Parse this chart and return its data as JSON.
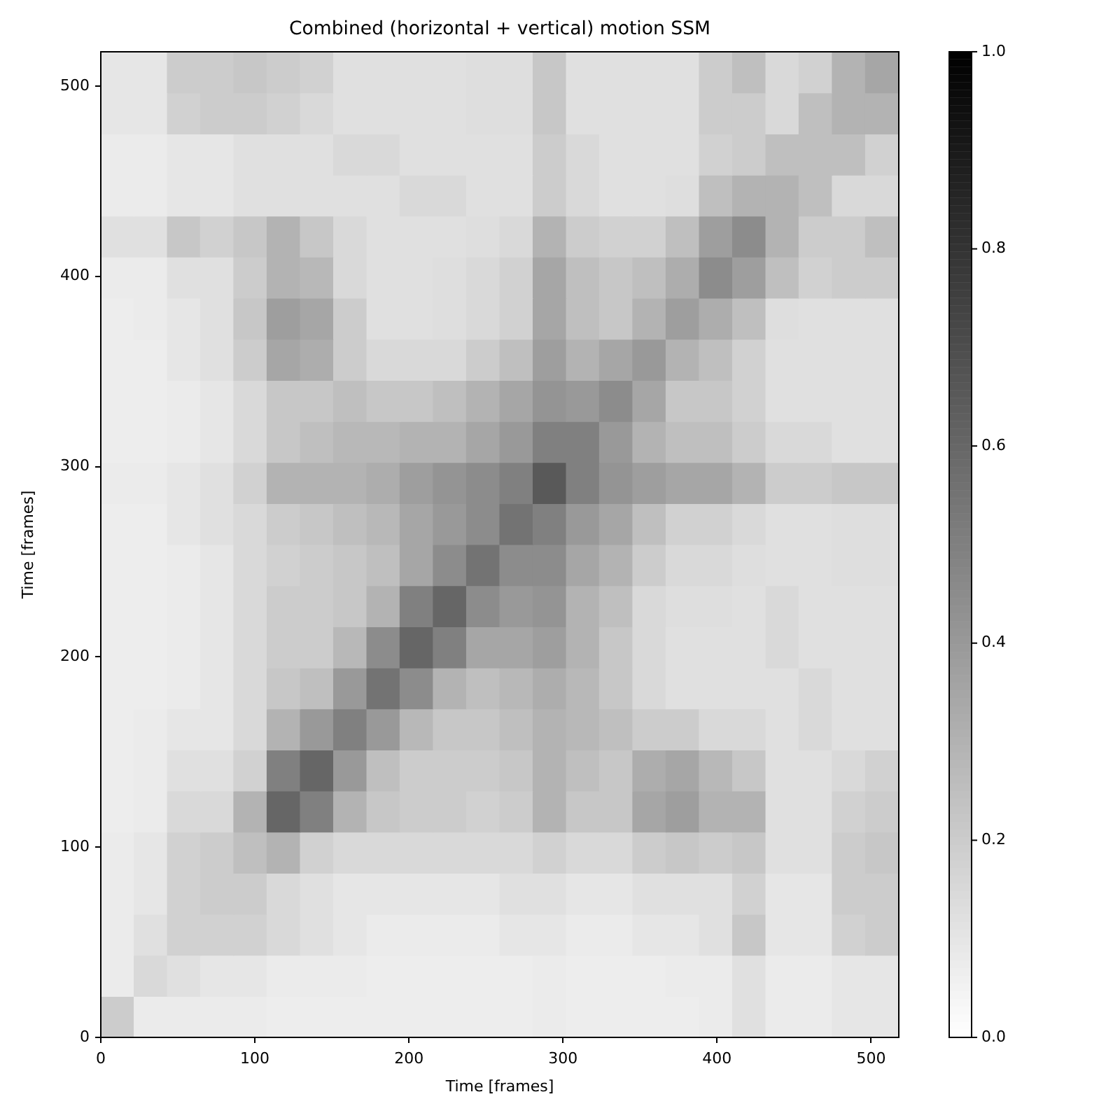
{
  "chart_data": {
    "type": "heatmap",
    "title": "Combined (horizontal + vertical) motion SSM",
    "xlabel": "Time [frames]",
    "ylabel": "Time [frames]",
    "x": [
      10.8,
      32.4,
      54.0,
      75.5,
      97.1,
      118.7,
      140.3,
      161.9,
      183.5,
      205.0,
      226.6,
      248.2,
      269.8,
      291.4,
      313.0,
      334.5,
      356.1,
      377.7,
      399.3,
      420.9,
      442.5,
      464.0,
      485.6,
      507.2
    ],
    "y": [
      507.2,
      485.6,
      464.0,
      442.5,
      420.9,
      399.3,
      377.7,
      356.1,
      334.5,
      313.0,
      291.4,
      269.8,
      248.2,
      226.6,
      205.0,
      183.5,
      161.9,
      140.3,
      118.7,
      97.1,
      75.5,
      54.0,
      32.4,
      10.8
    ],
    "xlim": [
      0,
      518
    ],
    "ylim": [
      0,
      518
    ],
    "xticks": [
      0,
      100,
      200,
      300,
      400,
      500
    ],
    "yticks": [
      0,
      100,
      200,
      300,
      400,
      500
    ],
    "cells": [
      [
        0.1,
        0.1,
        0.2,
        0.2,
        0.22,
        0.2,
        0.18,
        0.12,
        0.12,
        0.12,
        0.12,
        0.13,
        0.13,
        0.22,
        0.12,
        0.12,
        0.12,
        0.12,
        0.2,
        0.25,
        0.15,
        0.18,
        0.3,
        0.35
      ],
      [
        0.1,
        0.1,
        0.18,
        0.2,
        0.2,
        0.18,
        0.15,
        0.12,
        0.12,
        0.12,
        0.12,
        0.13,
        0.13,
        0.22,
        0.12,
        0.12,
        0.12,
        0.12,
        0.2,
        0.2,
        0.15,
        0.25,
        0.3,
        0.3
      ],
      [
        0.08,
        0.08,
        0.1,
        0.1,
        0.12,
        0.12,
        0.12,
        0.15,
        0.15,
        0.12,
        0.12,
        0.12,
        0.12,
        0.2,
        0.15,
        0.12,
        0.12,
        0.12,
        0.18,
        0.2,
        0.25,
        0.25,
        0.25,
        0.18
      ],
      [
        0.08,
        0.08,
        0.1,
        0.1,
        0.12,
        0.12,
        0.12,
        0.12,
        0.12,
        0.15,
        0.15,
        0.12,
        0.12,
        0.2,
        0.15,
        0.12,
        0.12,
        0.13,
        0.25,
        0.3,
        0.3,
        0.25,
        0.15,
        0.15
      ],
      [
        0.12,
        0.12,
        0.22,
        0.18,
        0.22,
        0.3,
        0.22,
        0.15,
        0.12,
        0.12,
        0.12,
        0.13,
        0.15,
        0.3,
        0.2,
        0.18,
        0.18,
        0.25,
        0.38,
        0.45,
        0.3,
        0.2,
        0.2,
        0.25
      ],
      [
        0.08,
        0.08,
        0.12,
        0.12,
        0.2,
        0.3,
        0.28,
        0.15,
        0.12,
        0.12,
        0.13,
        0.15,
        0.18,
        0.35,
        0.25,
        0.22,
        0.25,
        0.32,
        0.45,
        0.38,
        0.25,
        0.18,
        0.2,
        0.2
      ],
      [
        0.07,
        0.08,
        0.1,
        0.12,
        0.22,
        0.38,
        0.35,
        0.2,
        0.12,
        0.12,
        0.13,
        0.15,
        0.18,
        0.35,
        0.25,
        0.22,
        0.3,
        0.38,
        0.32,
        0.25,
        0.13,
        0.12,
        0.12,
        0.12
      ],
      [
        0.07,
        0.07,
        0.1,
        0.12,
        0.2,
        0.35,
        0.32,
        0.2,
        0.15,
        0.15,
        0.15,
        0.2,
        0.25,
        0.38,
        0.3,
        0.35,
        0.4,
        0.3,
        0.25,
        0.18,
        0.12,
        0.12,
        0.12,
        0.12
      ],
      [
        0.07,
        0.07,
        0.08,
        0.1,
        0.15,
        0.22,
        0.22,
        0.25,
        0.22,
        0.22,
        0.25,
        0.3,
        0.35,
        0.42,
        0.4,
        0.45,
        0.35,
        0.22,
        0.22,
        0.18,
        0.12,
        0.12,
        0.12,
        0.12
      ],
      [
        0.07,
        0.07,
        0.08,
        0.1,
        0.15,
        0.22,
        0.25,
        0.28,
        0.28,
        0.3,
        0.3,
        0.35,
        0.4,
        0.5,
        0.5,
        0.4,
        0.3,
        0.25,
        0.25,
        0.2,
        0.15,
        0.15,
        0.12,
        0.12
      ],
      [
        0.08,
        0.08,
        0.1,
        0.12,
        0.18,
        0.3,
        0.3,
        0.3,
        0.32,
        0.38,
        0.42,
        0.45,
        0.5,
        0.65,
        0.5,
        0.42,
        0.38,
        0.35,
        0.35,
        0.3,
        0.2,
        0.2,
        0.22,
        0.22
      ],
      [
        0.07,
        0.07,
        0.1,
        0.12,
        0.15,
        0.2,
        0.22,
        0.25,
        0.28,
        0.35,
        0.4,
        0.45,
        0.55,
        0.5,
        0.4,
        0.35,
        0.25,
        0.18,
        0.18,
        0.15,
        0.12,
        0.12,
        0.13,
        0.13
      ],
      [
        0.07,
        0.07,
        0.08,
        0.1,
        0.15,
        0.18,
        0.2,
        0.22,
        0.25,
        0.35,
        0.45,
        0.55,
        0.45,
        0.45,
        0.35,
        0.3,
        0.2,
        0.15,
        0.15,
        0.13,
        0.12,
        0.12,
        0.13,
        0.13
      ],
      [
        0.07,
        0.07,
        0.08,
        0.1,
        0.15,
        0.2,
        0.2,
        0.22,
        0.3,
        0.5,
        0.6,
        0.45,
        0.4,
        0.42,
        0.3,
        0.25,
        0.15,
        0.13,
        0.13,
        0.12,
        0.15,
        0.12,
        0.12,
        0.12
      ],
      [
        0.07,
        0.07,
        0.08,
        0.1,
        0.15,
        0.2,
        0.2,
        0.28,
        0.45,
        0.6,
        0.5,
        0.35,
        0.35,
        0.38,
        0.3,
        0.22,
        0.15,
        0.12,
        0.12,
        0.12,
        0.15,
        0.12,
        0.12,
        0.12
      ],
      [
        0.07,
        0.07,
        0.08,
        0.1,
        0.15,
        0.22,
        0.25,
        0.4,
        0.55,
        0.45,
        0.3,
        0.25,
        0.28,
        0.32,
        0.28,
        0.22,
        0.15,
        0.12,
        0.12,
        0.12,
        0.12,
        0.15,
        0.12,
        0.12
      ],
      [
        0.07,
        0.08,
        0.1,
        0.1,
        0.15,
        0.3,
        0.4,
        0.5,
        0.4,
        0.28,
        0.22,
        0.22,
        0.25,
        0.3,
        0.28,
        0.25,
        0.2,
        0.2,
        0.15,
        0.15,
        0.12,
        0.15,
        0.12,
        0.12
      ],
      [
        0.07,
        0.08,
        0.12,
        0.12,
        0.18,
        0.5,
        0.6,
        0.4,
        0.25,
        0.2,
        0.2,
        0.2,
        0.22,
        0.3,
        0.25,
        0.22,
        0.32,
        0.35,
        0.28,
        0.22,
        0.12,
        0.12,
        0.15,
        0.18
      ],
      [
        0.07,
        0.08,
        0.15,
        0.15,
        0.3,
        0.6,
        0.5,
        0.3,
        0.22,
        0.2,
        0.2,
        0.18,
        0.2,
        0.3,
        0.22,
        0.22,
        0.35,
        0.38,
        0.3,
        0.3,
        0.12,
        0.12,
        0.18,
        0.2
      ],
      [
        0.08,
        0.1,
        0.18,
        0.2,
        0.25,
        0.3,
        0.18,
        0.15,
        0.15,
        0.15,
        0.15,
        0.15,
        0.15,
        0.18,
        0.15,
        0.15,
        0.2,
        0.22,
        0.2,
        0.22,
        0.12,
        0.12,
        0.2,
        0.22
      ],
      [
        0.08,
        0.1,
        0.18,
        0.2,
        0.2,
        0.15,
        0.12,
        0.1,
        0.1,
        0.1,
        0.1,
        0.1,
        0.12,
        0.12,
        0.1,
        0.1,
        0.12,
        0.12,
        0.12,
        0.18,
        0.1,
        0.1,
        0.2,
        0.2
      ],
      [
        0.08,
        0.12,
        0.18,
        0.18,
        0.18,
        0.15,
        0.12,
        0.1,
        0.08,
        0.08,
        0.08,
        0.08,
        0.1,
        0.1,
        0.08,
        0.08,
        0.1,
        0.1,
        0.12,
        0.22,
        0.1,
        0.1,
        0.18,
        0.2
      ],
      [
        0.08,
        0.15,
        0.12,
        0.1,
        0.1,
        0.08,
        0.08,
        0.08,
        0.07,
        0.07,
        0.07,
        0.07,
        0.07,
        0.08,
        0.07,
        0.07,
        0.07,
        0.08,
        0.08,
        0.12,
        0.08,
        0.08,
        0.1,
        0.1
      ],
      [
        0.2,
        0.08,
        0.08,
        0.08,
        0.08,
        0.07,
        0.07,
        0.07,
        0.07,
        0.07,
        0.07,
        0.07,
        0.07,
        0.08,
        0.07,
        0.07,
        0.07,
        0.07,
        0.08,
        0.12,
        0.08,
        0.08,
        0.1,
        0.1
      ]
    ],
    "clim": [
      0,
      1
    ],
    "cticks": [
      {
        "value": 0,
        "label": "0.0"
      },
      0.2,
      0.4,
      0.6,
      0.8,
      {
        "value": 1,
        "label": "1.0"
      }
    ]
  }
}
